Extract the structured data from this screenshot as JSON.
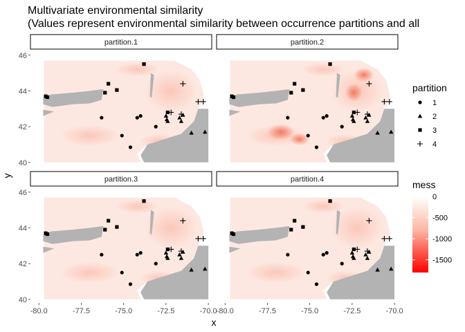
{
  "chart_data": {
    "type": "scatter",
    "title": "Multivariate environmental similarity",
    "subtitle": "(Values represent environmental similarity between occurrence partitions and all",
    "xlabel": "x",
    "ylabel": "y",
    "xlim": [
      -80.5,
      -69.8
    ],
    "ylim": [
      39.8,
      46.3
    ],
    "x_ticks": [
      -80.0,
      -77.5,
      -75.0,
      -72.5,
      -70.0
    ],
    "x_tick_labels": [
      "-80.0",
      "-77.5",
      "-75.0",
      "-72.5",
      "-70.0"
    ],
    "y_ticks": [
      40,
      42,
      44,
      46
    ],
    "y_tick_labels": [
      "40",
      "42",
      "44",
      "46"
    ],
    "grid": false,
    "panels": [
      "partition.1",
      "partition.2",
      "partition.3",
      "partition.4"
    ],
    "points": [
      {
        "x": -79.6,
        "y": 43.7,
        "partition": 3
      },
      {
        "x": -79.5,
        "y": 43.65,
        "partition": 3
      },
      {
        "x": -75.9,
        "y": 44.4,
        "partition": 3
      },
      {
        "x": -76.1,
        "y": 43.9,
        "partition": 3
      },
      {
        "x": -75.4,
        "y": 44.05,
        "partition": 3
      },
      {
        "x": -73.8,
        "y": 45.5,
        "partition": 3
      },
      {
        "x": -72.4,
        "y": 42.8,
        "partition": 3
      },
      {
        "x": -76.3,
        "y": 42.5,
        "partition": 1
      },
      {
        "x": -74.2,
        "y": 42.5,
        "partition": 1
      },
      {
        "x": -74.0,
        "y": 42.6,
        "partition": 1
      },
      {
        "x": -73.1,
        "y": 42.0,
        "partition": 1
      },
      {
        "x": -75.1,
        "y": 41.5,
        "partition": 1
      },
      {
        "x": -74.6,
        "y": 40.85,
        "partition": 1
      },
      {
        "x": -72.5,
        "y": 42.6,
        "partition": 2
      },
      {
        "x": -72.45,
        "y": 42.4,
        "partition": 2
      },
      {
        "x": -72.4,
        "y": 42.3,
        "partition": 2
      },
      {
        "x": -71.7,
        "y": 42.5,
        "partition": 2
      },
      {
        "x": -71.6,
        "y": 42.3,
        "partition": 2
      },
      {
        "x": -71.5,
        "y": 42.65,
        "partition": 2
      },
      {
        "x": -71.0,
        "y": 41.65,
        "partition": 2
      },
      {
        "x": -70.2,
        "y": 41.7,
        "partition": 2
      },
      {
        "x": -71.5,
        "y": 44.4,
        "partition": 4
      },
      {
        "x": -72.2,
        "y": 42.8,
        "partition": 4
      },
      {
        "x": -71.6,
        "y": 42.7,
        "partition": 4
      },
      {
        "x": -70.6,
        "y": 43.4,
        "partition": 4
      },
      {
        "x": -70.3,
        "y": 43.4,
        "partition": 4
      }
    ],
    "legend_shape": {
      "title": "partition",
      "entries": [
        {
          "label": "1",
          "shape": "circle"
        },
        {
          "label": "2",
          "shape": "triangle"
        },
        {
          "label": "3",
          "shape": "square"
        },
        {
          "label": "4",
          "shape": "plus"
        }
      ],
      "placement": "right"
    },
    "legend_color": {
      "title": "mess",
      "ticks": [
        0,
        -500,
        -1000,
        -1500
      ],
      "tick_labels": [
        "0",
        "-500",
        "-1000",
        "-1500"
      ],
      "range": [
        -1800,
        0
      ],
      "color_high": "#ffffff",
      "color_low": "#ff0000",
      "placement": "right"
    },
    "colors": {
      "no_data": "#b3b3b3",
      "points": "#000000",
      "strip_fill": "#ffffff",
      "strip_border": "#000000"
    }
  }
}
